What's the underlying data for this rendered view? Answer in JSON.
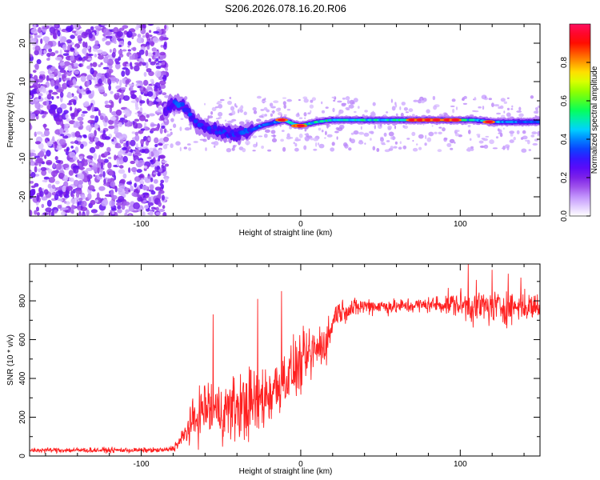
{
  "figure": {
    "title": "S206.2026.078.16.20.R06"
  },
  "chart_data": [
    {
      "type": "heatmap",
      "name": "spectrogram",
      "xlabel": "Height of straight line (km)",
      "ylabel": "Frequency (Hz)",
      "xlim": [
        -170,
        150
      ],
      "ylim": [
        -25,
        25
      ],
      "xticks": [
        -100,
        0,
        100
      ],
      "yticks": [
        -20,
        -10,
        0,
        10,
        20
      ],
      "colorbar": {
        "label": "Normalized spectral amplitude",
        "range": [
          0,
          1
        ],
        "ticks": [
          0.0,
          0.2,
          0.4,
          0.6,
          0.8
        ],
        "colors": [
          "#ffffff",
          "#c8a0ff",
          "#8a2be2",
          "#4b00ff",
          "#0050ff",
          "#00d8ff",
          "#00ff60",
          "#80ff00",
          "#ffff00",
          "#ff8000",
          "#ff0000",
          "#ff1060"
        ]
      },
      "noise_region": {
        "x_range": [
          -170,
          -84
        ],
        "amplitude": [
          0.05,
          0.25
        ]
      },
      "ridge": [
        {
          "x": -85,
          "f": 2.0,
          "amp": 0.35
        },
        {
          "x": -80,
          "f": 4.5,
          "amp": 0.4
        },
        {
          "x": -75,
          "f": 4.0,
          "amp": 0.45
        },
        {
          "x": -70,
          "f": 2.0,
          "amp": 0.4
        },
        {
          "x": -65,
          "f": -1.0,
          "amp": 0.4
        },
        {
          "x": -60,
          "f": -2.0,
          "amp": 0.4
        },
        {
          "x": -55,
          "f": -2.5,
          "amp": 0.4
        },
        {
          "x": -50,
          "f": -3.0,
          "amp": 0.4
        },
        {
          "x": -45,
          "f": -3.5,
          "amp": 0.4
        },
        {
          "x": -40,
          "f": -4.0,
          "amp": 0.4
        },
        {
          "x": -35,
          "f": -3.0,
          "amp": 0.45
        },
        {
          "x": -30,
          "f": -2.5,
          "amp": 0.45
        },
        {
          "x": -25,
          "f": -1.5,
          "amp": 0.5
        },
        {
          "x": -20,
          "f": -1.0,
          "amp": 0.5
        },
        {
          "x": -15,
          "f": -0.5,
          "amp": 0.55
        },
        {
          "x": -10,
          "f": 0.0,
          "amp": 0.6
        },
        {
          "x": -5,
          "f": -1.0,
          "amp": 0.6
        },
        {
          "x": 0,
          "f": -1.5,
          "amp": 0.65
        },
        {
          "x": 5,
          "f": -1.0,
          "amp": 0.65
        },
        {
          "x": 10,
          "f": -0.5,
          "amp": 0.65
        },
        {
          "x": 20,
          "f": 0.0,
          "amp": 0.65
        },
        {
          "x": 30,
          "f": 0.0,
          "amp": 0.65
        },
        {
          "x": 40,
          "f": 0.0,
          "amp": 0.65
        },
        {
          "x": 50,
          "f": 0.0,
          "amp": 0.65
        },
        {
          "x": 60,
          "f": 0.0,
          "amp": 0.7
        },
        {
          "x": 70,
          "f": 0.0,
          "amp": 0.75
        },
        {
          "x": 80,
          "f": 0.0,
          "amp": 0.8
        },
        {
          "x": 90,
          "f": 0.0,
          "amp": 0.8
        },
        {
          "x": 100,
          "f": 0.0,
          "amp": 0.7
        },
        {
          "x": 110,
          "f": 0.0,
          "amp": 0.6
        },
        {
          "x": 120,
          "f": -0.5,
          "amp": 0.55
        },
        {
          "x": 130,
          "f": -0.5,
          "amp": 0.5
        },
        {
          "x": 140,
          "f": -0.5,
          "amp": 0.45
        },
        {
          "x": 150,
          "f": -0.5,
          "amp": 0.4
        }
      ],
      "hot_spots": [
        {
          "x": -12,
          "f": 0.0
        },
        {
          "x": -2,
          "f": -1.5
        },
        {
          "x": 0,
          "f": -1.5
        },
        {
          "x": 70,
          "f": 0.0
        },
        {
          "x": 75,
          "f": 0.0
        },
        {
          "x": 80,
          "f": 0.0
        },
        {
          "x": 85,
          "f": 0.0
        },
        {
          "x": 92,
          "f": 0.0
        },
        {
          "x": 97,
          "f": 0.0
        },
        {
          "x": 118,
          "f": -0.5
        }
      ]
    },
    {
      "type": "line",
      "name": "snr",
      "xlabel": "Height of straight line (km)",
      "ylabel": "SNR (10 * v/v)",
      "xlim": [
        -170,
        150
      ],
      "ylim": [
        0,
        990
      ],
      "xticks": [
        -100,
        0,
        100
      ],
      "yticks": [
        0,
        200,
        400,
        600,
        800
      ],
      "color": "#ff2020",
      "envelope": [
        {
          "x": -170,
          "mean": 30,
          "spread": 15
        },
        {
          "x": -85,
          "mean": 30,
          "spread": 15
        },
        {
          "x": -80,
          "mean": 40,
          "spread": 20
        },
        {
          "x": -75,
          "mean": 80,
          "spread": 50
        },
        {
          "x": -70,
          "mean": 150,
          "spread": 100
        },
        {
          "x": -60,
          "mean": 250,
          "spread": 180
        },
        {
          "x": -50,
          "mean": 230,
          "spread": 170
        },
        {
          "x": -40,
          "mean": 250,
          "spread": 200
        },
        {
          "x": -30,
          "mean": 270,
          "spread": 220
        },
        {
          "x": -20,
          "mean": 320,
          "spread": 200
        },
        {
          "x": -10,
          "mean": 400,
          "spread": 170
        },
        {
          "x": 0,
          "mean": 470,
          "spread": 170
        },
        {
          "x": 10,
          "mean": 550,
          "spread": 150
        },
        {
          "x": 17,
          "mean": 600,
          "spread": 120
        },
        {
          "x": 22,
          "mean": 740,
          "spread": 70
        },
        {
          "x": 40,
          "mean": 775,
          "spread": 50
        },
        {
          "x": 60,
          "mean": 770,
          "spread": 45
        },
        {
          "x": 80,
          "mean": 780,
          "spread": 45
        },
        {
          "x": 95,
          "mean": 785,
          "spread": 70
        },
        {
          "x": 110,
          "mean": 770,
          "spread": 110
        },
        {
          "x": 130,
          "mean": 770,
          "spread": 100
        },
        {
          "x": 150,
          "mean": 770,
          "spread": 80
        }
      ],
      "spikes": [
        {
          "x": -55,
          "y": 730
        },
        {
          "x": -27,
          "y": 810
        },
        {
          "x": -12,
          "y": 850
        },
        {
          "x": 105,
          "y": 990
        },
        {
          "x": 120,
          "y": 960
        },
        {
          "x": 130,
          "y": 940
        },
        {
          "x": 138,
          "y": 920
        }
      ]
    }
  ]
}
